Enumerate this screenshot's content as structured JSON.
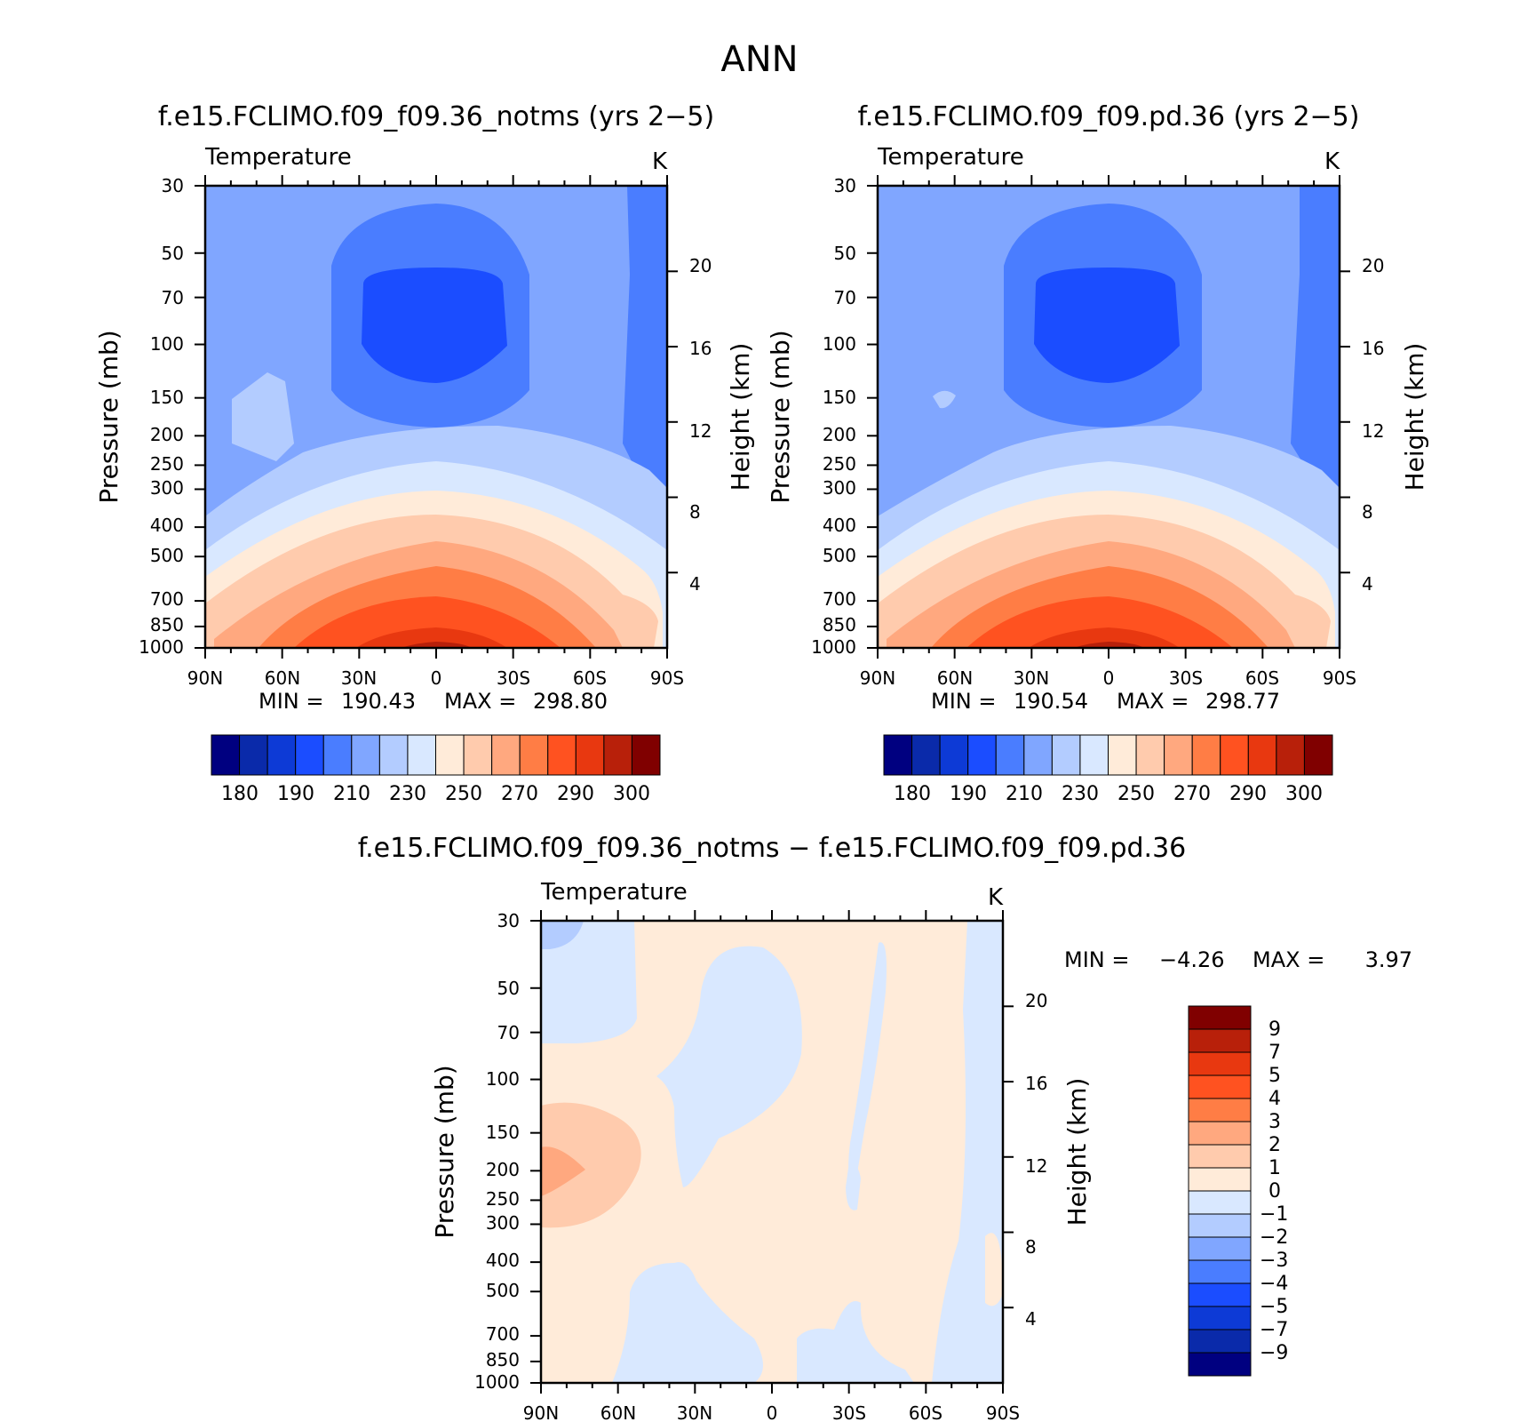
{
  "page_title": "ANN",
  "chart_data": [
    {
      "type": "contour",
      "title": "f.e15.FCLIMO.f09_f09.36_notms (yrs 2−5)",
      "variable": "Temperature",
      "units": "K",
      "xlabel": "",
      "ylabel": "Pressure (mb)",
      "y2label": "Height (km)",
      "x_ticks": [
        "90N",
        "60N",
        "30N",
        "0",
        "30S",
        "60S",
        "90S"
      ],
      "x_values": [
        90,
        60,
        30,
        0,
        -30,
        -60,
        -90
      ],
      "y_ticks": [
        "30",
        "50",
        "70",
        "100",
        "150",
        "200",
        "250",
        "300",
        "400",
        "500",
        "700",
        "850",
        "1000"
      ],
      "y_values": [
        30,
        50,
        70,
        100,
        150,
        200,
        250,
        300,
        400,
        500,
        700,
        850,
        1000
      ],
      "y2_ticks": [
        "20",
        "16",
        "12",
        "8",
        "4"
      ],
      "y2_values": [
        20,
        16,
        12,
        8,
        4
      ],
      "min_label": "MIN =",
      "min": "190.43",
      "max_label": "MAX =",
      "max": "298.80",
      "colorbar": {
        "labels": [
          "180",
          "190",
          "210",
          "230",
          "250",
          "270",
          "290",
          "300"
        ],
        "colors": [
          "#000080",
          "#0a2aaa",
          "#0d3ad6",
          "#1b4dff",
          "#4a7dff",
          "#80a6ff",
          "#b3ccff",
          "#d9e8ff",
          "#ffebd9",
          "#ffcbad",
          "#ffa87f",
          "#ff7d45",
          "#ff5220",
          "#e83810",
          "#b8200a",
          "#800000"
        ]
      }
    },
    {
      "type": "contour",
      "title": "f.e15.FCLIMO.f09_f09.pd.36 (yrs 2−5)",
      "variable": "Temperature",
      "units": "K",
      "xlabel": "",
      "ylabel": "Pressure (mb)",
      "y2label": "Height (km)",
      "x_ticks": [
        "90N",
        "60N",
        "30N",
        "0",
        "30S",
        "60S",
        "90S"
      ],
      "x_values": [
        90,
        60,
        30,
        0,
        -30,
        -60,
        -90
      ],
      "y_ticks": [
        "30",
        "50",
        "70",
        "100",
        "150",
        "200",
        "250",
        "300",
        "400",
        "500",
        "700",
        "850",
        "1000"
      ],
      "y_values": [
        30,
        50,
        70,
        100,
        150,
        200,
        250,
        300,
        400,
        500,
        700,
        850,
        1000
      ],
      "y2_ticks": [
        "20",
        "16",
        "12",
        "8",
        "4"
      ],
      "y2_values": [
        20,
        16,
        12,
        8,
        4
      ],
      "min_label": "MIN =",
      "min": "190.54",
      "max_label": "MAX =",
      "max": "298.77",
      "colorbar": {
        "labels": [
          "180",
          "190",
          "210",
          "230",
          "250",
          "270",
          "290",
          "300"
        ],
        "colors": [
          "#000080",
          "#0a2aaa",
          "#0d3ad6",
          "#1b4dff",
          "#4a7dff",
          "#80a6ff",
          "#b3ccff",
          "#d9e8ff",
          "#ffebd9",
          "#ffcbad",
          "#ffa87f",
          "#ff7d45",
          "#ff5220",
          "#e83810",
          "#b8200a",
          "#800000"
        ]
      }
    },
    {
      "type": "contour",
      "title": "f.e15.FCLIMO.f09_f09.36_notms − f.e15.FCLIMO.f09_f09.pd.36",
      "variable": "Temperature",
      "units": "K",
      "xlabel": "",
      "ylabel": "Pressure (mb)",
      "y2label": "Height (km)",
      "x_ticks": [
        "90N",
        "60N",
        "30N",
        "0",
        "30S",
        "60S",
        "90S"
      ],
      "x_values": [
        90,
        60,
        30,
        0,
        -30,
        -60,
        -90
      ],
      "y_ticks": [
        "30",
        "50",
        "70",
        "100",
        "150",
        "200",
        "250",
        "300",
        "400",
        "500",
        "700",
        "850",
        "1000"
      ],
      "y_values": [
        30,
        50,
        70,
        100,
        150,
        200,
        250,
        300,
        400,
        500,
        700,
        850,
        1000
      ],
      "y2_ticks": [
        "20",
        "16",
        "12",
        "8",
        "4"
      ],
      "y2_values": [
        20,
        16,
        12,
        8,
        4
      ],
      "min_label": "MIN =",
      "min": "−4.26",
      "max_label": "MAX =",
      "max": "3.97",
      "colorbar": {
        "labels": [
          "9",
          "7",
          "5",
          "4",
          "3",
          "2",
          "1",
          "0",
          "−1",
          "−2",
          "−3",
          "−4",
          "−5",
          "−7",
          "−9"
        ],
        "colors": [
          "#800000",
          "#b8200a",
          "#e83810",
          "#ff5220",
          "#ff7d45",
          "#ffa87f",
          "#ffcbad",
          "#ffebd9",
          "#d9e8ff",
          "#b3ccff",
          "#80a6ff",
          "#4a7dff",
          "#1b4dff",
          "#0d3ad6",
          "#0a2aaa",
          "#000080"
        ]
      }
    }
  ]
}
